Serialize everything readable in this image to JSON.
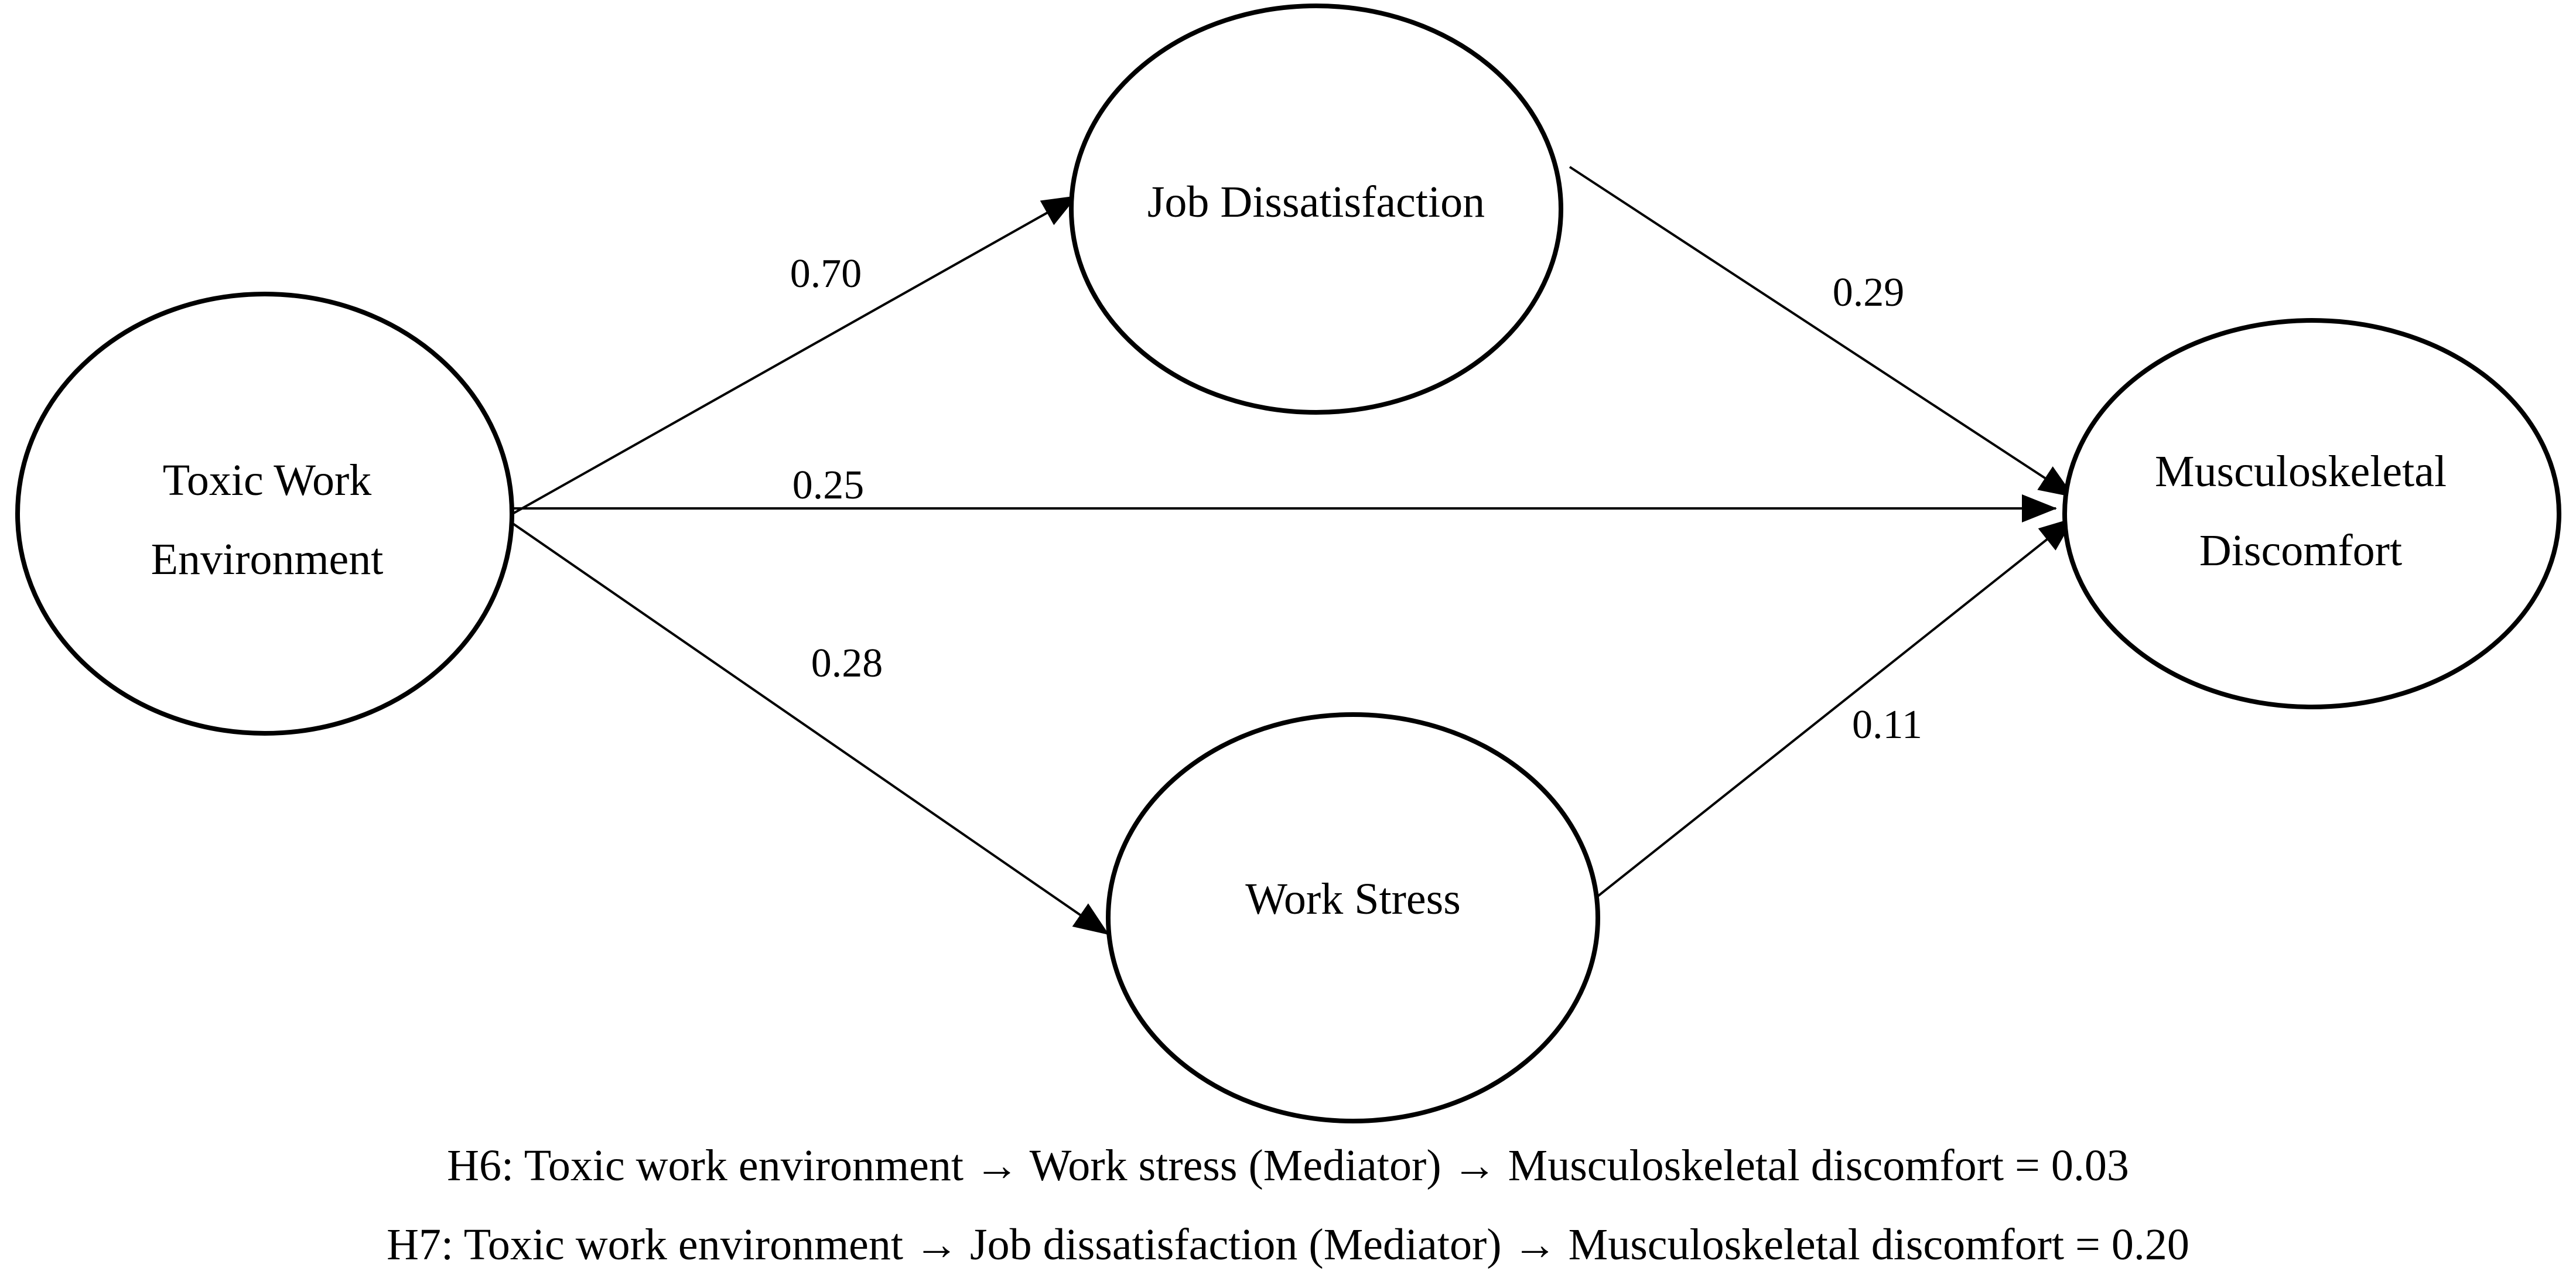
{
  "nodes": {
    "toxic": {
      "line1": "Toxic Work",
      "line2": "Environment"
    },
    "job": {
      "label": "Job Dissatisfaction"
    },
    "stress": {
      "label": "Work Stress"
    },
    "msd": {
      "line1": "Musculoskeletal",
      "line2": "Discomfort"
    }
  },
  "paths": {
    "toxic_to_job": "0.70",
    "job_to_msd": "0.29",
    "toxic_to_msd": "0.25",
    "toxic_to_stress": "0.28",
    "stress_to_msd": "0.11"
  },
  "hypotheses": {
    "h6": "H6: Toxic work environment → Work stress (Mediator) → Musculoskeletal discomfort = 0.03",
    "h7": "H7: Toxic work environment → Job dissatisfaction (Mediator) → Musculoskeletal discomfort = 0.20"
  }
}
